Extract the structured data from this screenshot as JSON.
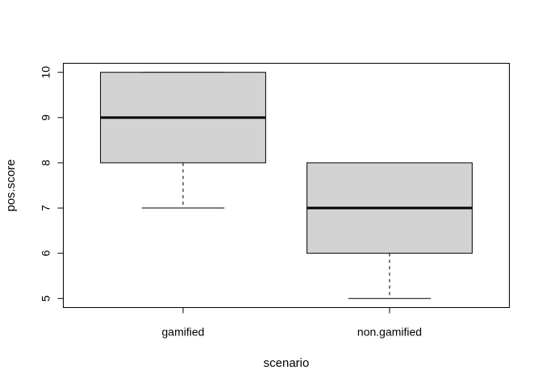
{
  "chart_data": {
    "type": "boxplot",
    "title": "",
    "xlabel": "scenario",
    "ylabel": "pos.score",
    "ylim": [
      4.8,
      10.2
    ],
    "yticks": [
      5,
      6,
      7,
      8,
      9,
      10
    ],
    "grid": false,
    "categories": [
      "gamified",
      "non.gamified"
    ],
    "boxes": [
      {
        "category": "gamified",
        "whisker_low": 7,
        "q1": 8,
        "median": 9,
        "q3": 10,
        "whisker_high": 10
      },
      {
        "category": "non.gamified",
        "whisker_low": 5,
        "q1": 6,
        "median": 7,
        "q3": 8,
        "whisker_high": 8
      }
    ],
    "colors": {
      "box_fill": "#d3d3d3",
      "stroke": "#000000"
    }
  }
}
